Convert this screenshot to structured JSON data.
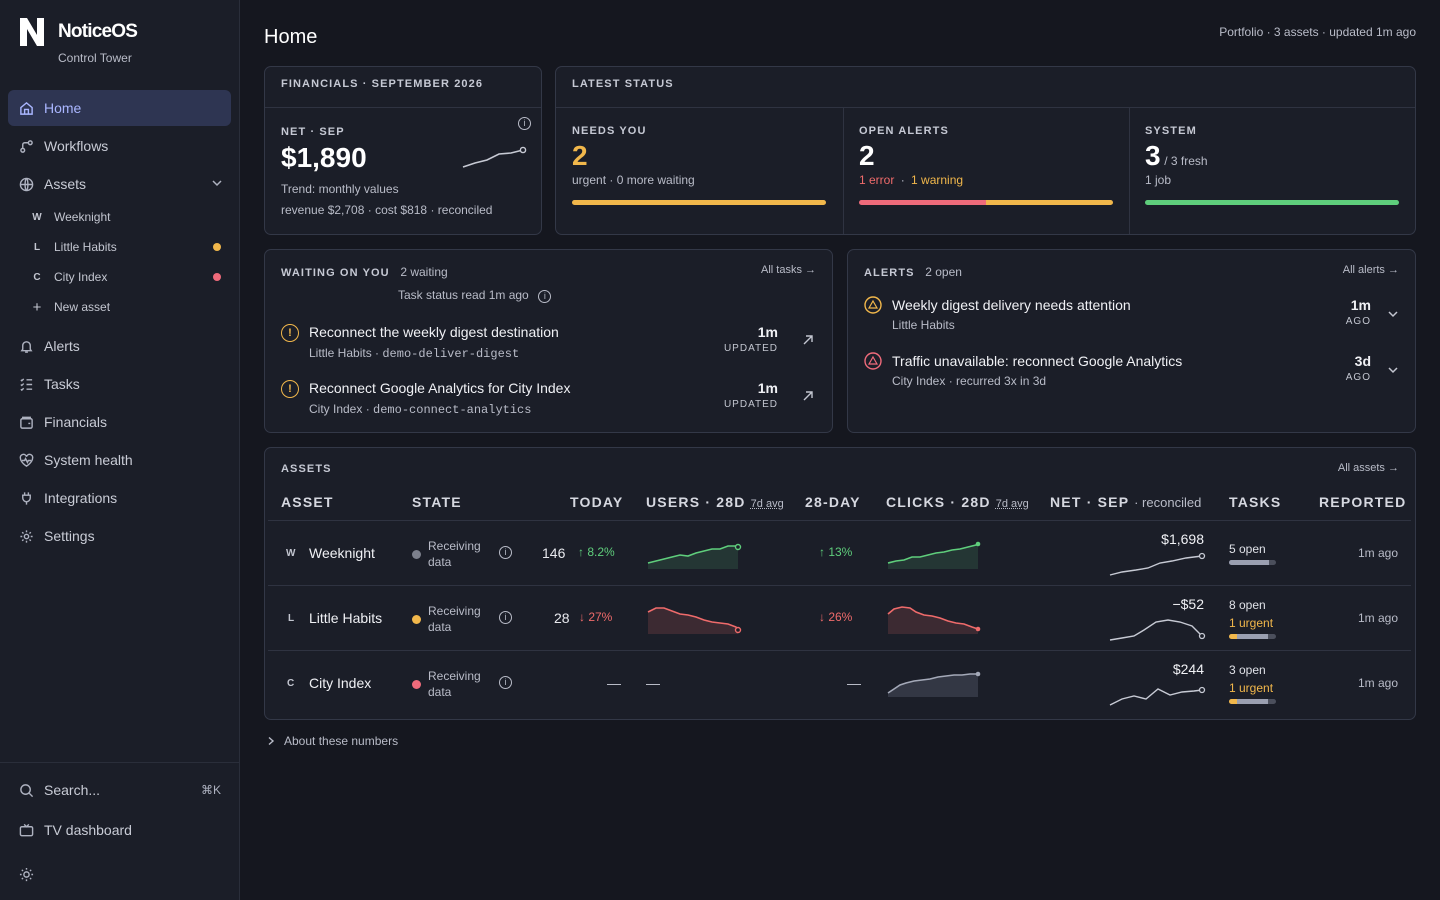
{
  "app": {
    "name": "NoticeOS",
    "subtitle": "Control Tower"
  },
  "sidebar": {
    "items": [
      {
        "label": "Home",
        "icon": "home-icon"
      },
      {
        "label": "Workflows",
        "icon": "workflow-icon"
      },
      {
        "label": "Assets",
        "icon": "globe-icon"
      },
      {
        "label": "Alerts",
        "icon": "bell-icon"
      },
      {
        "label": "Tasks",
        "icon": "tasks-icon"
      },
      {
        "label": "Financials",
        "icon": "wallet-icon"
      },
      {
        "label": "System health",
        "icon": "heart-pulse-icon"
      },
      {
        "label": "Integrations",
        "icon": "plug-icon"
      },
      {
        "label": "Settings",
        "icon": "gear-icon"
      }
    ],
    "assets": [
      {
        "letter": "W",
        "label": "Weeknight",
        "dot": ""
      },
      {
        "letter": "L",
        "label": "Little Habits",
        "dot": "#f1b74b"
      },
      {
        "letter": "C",
        "label": "City Index",
        "dot": "#ef6b7b"
      }
    ],
    "new_asset": "New asset",
    "search": "Search...",
    "search_shortcut": "⌘K",
    "tv_dashboard": "TV dashboard"
  },
  "header": {
    "title": "Home",
    "meta": "Portfolio · 3 assets · updated 1m ago"
  },
  "financials": {
    "heading": "FINANCIALS · SEPTEMBER 2026",
    "label": "NET · SEP",
    "value": "$1,890",
    "trend": "Trend: monthly values",
    "breakdown": "revenue $2,708 · cost $818 · reconciled"
  },
  "status": {
    "heading": "LATEST STATUS",
    "needs_you": {
      "label": "NEEDS YOU",
      "value": "2",
      "detail": "urgent · 0 more waiting"
    },
    "open_alerts": {
      "label": "OPEN ALERTS",
      "value": "2",
      "error": "1 error",
      "sep": "·",
      "warning": "1 warning"
    },
    "system": {
      "label": "SYSTEM",
      "value": "3",
      "fresh": "/ 3 fresh",
      "detail": "1 job"
    }
  },
  "waiting": {
    "heading": "WAITING ON YOU",
    "count": "2 waiting",
    "all_link": "All tasks →",
    "read_note": "Task status read 1m ago",
    "items": [
      {
        "title": "Reconnect the weekly digest destination",
        "asset": "Little Habits · ",
        "code": "demo-deliver-digest",
        "time": "1m",
        "time_label": "UPDATED"
      },
      {
        "title": "Reconnect Google Analytics for City Index",
        "asset": "City Index · ",
        "code": "demo-connect-analytics",
        "time": "1m",
        "time_label": "UPDATED"
      }
    ]
  },
  "alerts": {
    "heading": "ALERTS",
    "count": "2 open",
    "all_link": "All alerts →",
    "items": [
      {
        "title": "Weekly digest delivery needs attention",
        "sub": "Little Habits",
        "time": "1m",
        "time_label": "AGO",
        "color": "#f1b74b"
      },
      {
        "title": "Traffic unavailable: reconnect Google Analytics",
        "sub": "City Index · recurred 3x in 3d",
        "time": "3d",
        "time_label": "AGO",
        "color": "#ef6b7b"
      }
    ]
  },
  "assets_table": {
    "heading": "ASSETS",
    "all_link": "All assets →",
    "columns": {
      "asset": "ASSET",
      "state": "STATE",
      "today": "TODAY",
      "users": "USERS · 28D",
      "users_avg": "7d avg",
      "day28": "28-DAY",
      "clicks": "CLICKS · 28D",
      "clicks_avg": "7d avg",
      "net": "NET · SEP",
      "net_note": "· reconciled",
      "tasks": "TASKS",
      "reported": "REPORTED"
    },
    "rows": [
      {
        "letter": "W",
        "name": "Weeknight",
        "state": "Receiving data",
        "state_color": "#7c808c",
        "today": "146",
        "today_delta": "↑ 8.2%",
        "day28": "↑ 13%",
        "net": "$1,698",
        "tasks_open": "5 open",
        "tasks_urgent": "",
        "reported": "1m ago"
      },
      {
        "letter": "L",
        "name": "Little Habits",
        "state": "Receiving data",
        "state_color": "#f1b74b",
        "today": "28",
        "today_delta": "↓ 27%",
        "day28": "↓ 26%",
        "net": "−$52",
        "tasks_open": "8 open",
        "tasks_urgent": "1 urgent",
        "reported": "1m ago"
      },
      {
        "letter": "C",
        "name": "City Index",
        "state": "Receiving data",
        "state_color": "#ef6b7b",
        "today": "—",
        "users": "—",
        "day28": "—",
        "net": "$244",
        "tasks_open": "3 open",
        "tasks_urgent": "1 urgent",
        "reported": "1m ago"
      }
    ]
  },
  "footer": {
    "about": "About these numbers"
  },
  "colors": {
    "accent": "#aab6ff",
    "warning": "#f1b74b",
    "error": "#ef6b7b",
    "success": "#5fce7c"
  }
}
